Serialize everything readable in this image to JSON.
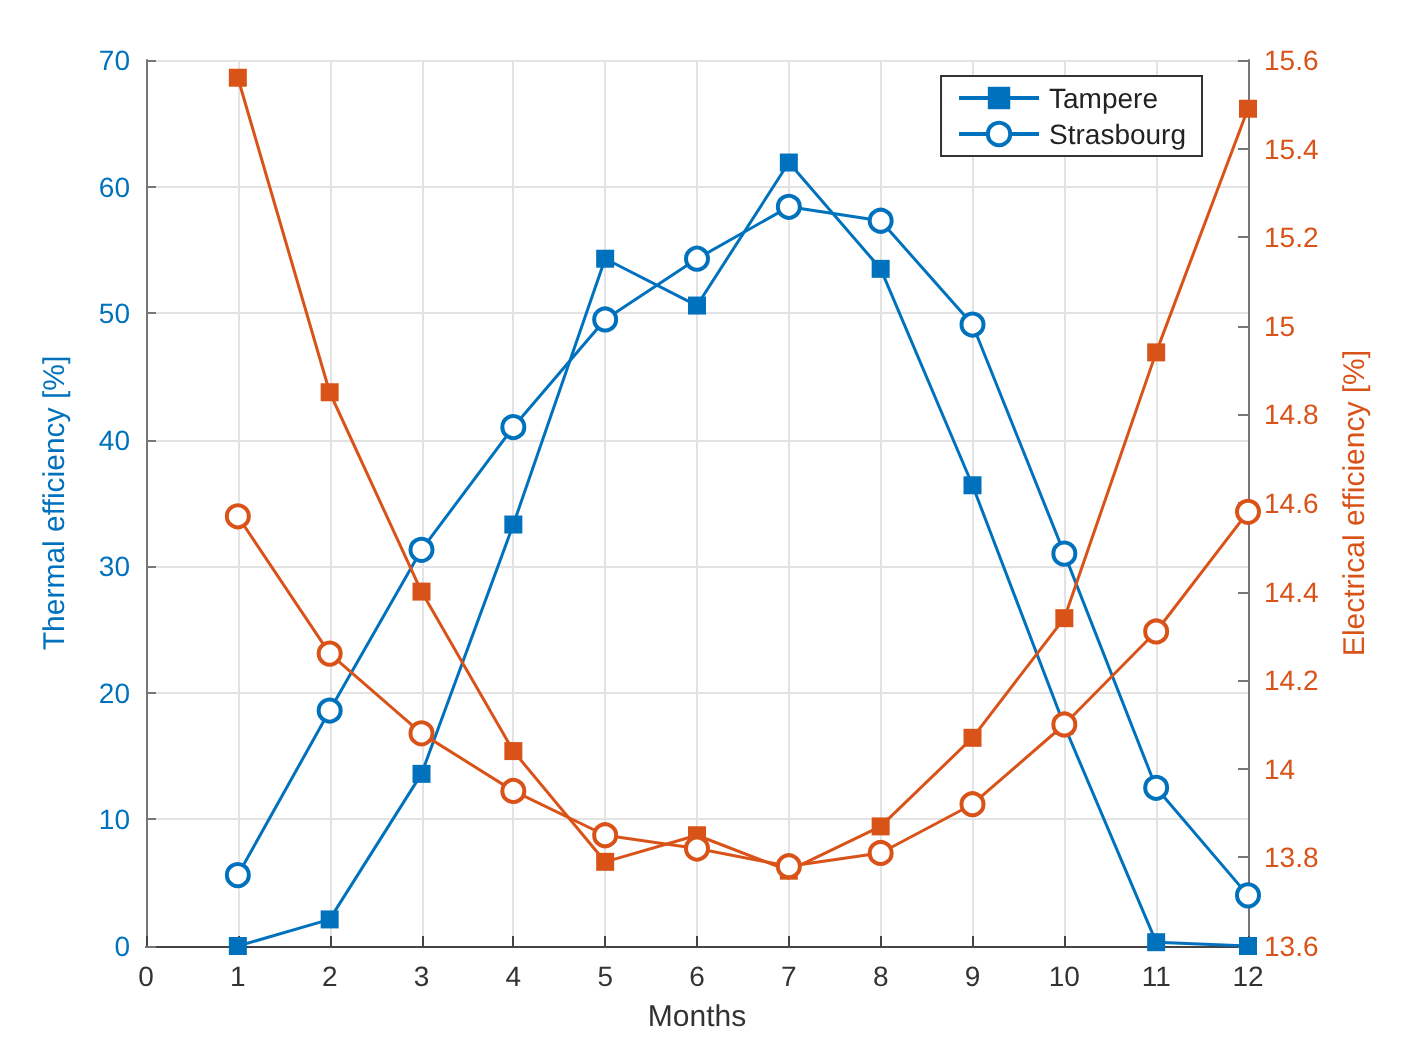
{
  "chart_data": {
    "type": "line",
    "xlabel": "Months",
    "ylabel": "Thermal efficiency [%]",
    "y2label": "Electrical efficiency [%]",
    "x": [
      1,
      2,
      3,
      4,
      5,
      6,
      7,
      8,
      9,
      10,
      11,
      12
    ],
    "series": [
      {
        "name": "Tampere",
        "color": "#0072bd",
        "marker": "square",
        "values": [
          0,
          2.1,
          13.6,
          33.3,
          54.3,
          50.6,
          61.9,
          53.5,
          36.4,
          17.4,
          0.3,
          0
        ]
      },
      {
        "name": "Strasbourg",
        "color": "#0072bd",
        "marker": "circle",
        "values": [
          5.6,
          18.6,
          31.3,
          41,
          49.5,
          54.3,
          58.4,
          57.3,
          49.1,
          31,
          12.5,
          4
        ]
      },
      {
        "color": "#d95319",
        "marker": "square",
        "axis": "y2",
        "values": [
          15.56,
          14.85,
          14.4,
          14.04,
          13.79,
          13.85,
          13.77,
          13.87,
          14.07,
          14.34,
          14.94,
          15.49
        ]
      },
      {
        "color": "#d95319",
        "marker": "circle",
        "axis": "y2",
        "values": [
          14.57,
          14.26,
          14.08,
          13.95,
          13.85,
          13.82,
          13.78,
          13.81,
          13.92,
          14.1,
          14.31,
          14.58
        ]
      }
    ],
    "xlim": [
      0,
      12
    ],
    "xticks": [
      0,
      1,
      2,
      3,
      4,
      5,
      6,
      7,
      8,
      9,
      10,
      11,
      12
    ],
    "ylim": [
      0,
      70
    ],
    "yticks": [
      0,
      10,
      20,
      30,
      40,
      50,
      60,
      70
    ],
    "y2lim": [
      13.6,
      15.6
    ],
    "y2ticks": [
      13.6,
      13.8,
      14,
      14.2,
      14.4,
      14.6,
      14.8,
      15,
      15.2,
      15.4,
      15.6
    ],
    "grid": true,
    "legend": "top right"
  }
}
